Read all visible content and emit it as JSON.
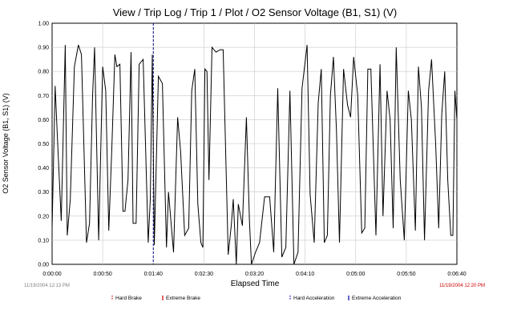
{
  "chart_data": {
    "type": "line",
    "title": "View / Trip Log / Trip 1 / Plot / O2 Sensor Voltage (B1, S1) (V)",
    "xlabel": "Elapsed Time",
    "ylabel": "O2 Sensor Voltage (B1, S1) (V)",
    "ylim": [
      0,
      1.0
    ],
    "xlim_seconds": [
      0,
      400
    ],
    "y_ticks": [
      "0.00",
      "0.10",
      "0.20",
      "0.30",
      "0.40",
      "0.50",
      "0.60",
      "0.70",
      "0.80",
      "0.90",
      "1.00"
    ],
    "x_ticks": [
      "0:00:00",
      "0:00:50",
      "0:01:40",
      "0:02:30",
      "0:03:20",
      "0:04:10",
      "0:05:00",
      "0:05:50",
      "0:06:40"
    ],
    "grid": true,
    "start_time": "11/19/2004 12:13 PM",
    "end_time": "11/19/2004 12:20 PM",
    "series": [
      {
        "x": [
          0,
          3,
          5,
          9,
          13,
          15,
          18,
          22,
          26,
          29,
          34,
          37,
          40,
          42,
          46,
          50,
          53,
          56,
          59,
          62,
          64,
          67,
          70,
          72,
          75,
          78,
          80,
          83,
          86,
          90,
          95,
          97,
          99,
          101,
          105,
          109,
          113,
          115,
          120,
          124,
          127,
          131,
          135,
          138,
          141,
          144,
          147,
          149,
          151,
          153,
          155,
          158,
          162,
          166,
          169,
          172,
          174,
          177,
          179,
          182,
          184,
          188,
          192,
          195,
          197,
          201,
          205,
          210,
          215,
          219,
          223,
          227,
          231,
          235,
          239,
          243,
          247,
          252,
          255,
          259,
          263,
          266,
          269,
          272,
          275,
          278,
          281,
          284,
          288,
          292,
          295,
          298,
          302,
          306,
          309,
          312,
          315,
          320,
          324,
          327,
          331,
          334,
          337,
          340,
          344,
          348,
          352,
          355,
          359,
          362,
          365,
          368,
          372,
          375,
          379,
          382,
          385,
          388,
          391,
          394,
          396,
          398,
          400
        ],
        "y": [
          0.15,
          0.74,
          0.55,
          0.18,
          0.91,
          0.12,
          0.27,
          0.82,
          0.91,
          0.87,
          0.09,
          0.17,
          0.7,
          0.9,
          0.1,
          0.82,
          0.72,
          0.14,
          0.48,
          0.87,
          0.82,
          0.83,
          0.22,
          0.22,
          0.35,
          0.88,
          0.17,
          0.17,
          0.83,
          0.85,
          0.09,
          0.27,
          0.87,
          0.08,
          0.78,
          0.75,
          0.07,
          0.3,
          0.05,
          0.61,
          0.47,
          0.12,
          0.15,
          0.72,
          0.81,
          0.25,
          0.09,
          0.07,
          0.81,
          0.8,
          0.35,
          0.9,
          0.88,
          0.89,
          0.89,
          0.39,
          0.04,
          0.16,
          0.27,
          0.0,
          0.25,
          0.16,
          0.61,
          0.18,
          0.0,
          0.05,
          0.09,
          0.28,
          0.28,
          0.05,
          0.73,
          0.03,
          0.07,
          0.72,
          0.0,
          0.05,
          0.73,
          0.91,
          0.29,
          0.09,
          0.67,
          0.81,
          0.09,
          0.12,
          0.7,
          0.86,
          0.55,
          0.09,
          0.81,
          0.66,
          0.61,
          0.86,
          0.7,
          0.13,
          0.15,
          0.81,
          0.81,
          0.12,
          0.83,
          0.2,
          0.72,
          0.6,
          0.15,
          0.9,
          0.35,
          0.1,
          0.72,
          0.6,
          0.14,
          0.82,
          0.65,
          0.1,
          0.72,
          0.85,
          0.5,
          0.15,
          0.62,
          0.8,
          0.35,
          0.12,
          0.12,
          0.72,
          0.6
        ]
      }
    ],
    "markers_seconds": [
      100
    ]
  },
  "legend": [
    {
      "label": "Hard Brake",
      "color": "#cc0000",
      "style": "dashed"
    },
    {
      "label": "Extreme Brake",
      "color": "#cc0000",
      "style": "solid"
    },
    {
      "label": "Hard Acceleration",
      "color": "#0000aa",
      "style": "dashed"
    },
    {
      "label": "Extreme Acceleration",
      "color": "#0000aa",
      "style": "solid"
    }
  ],
  "colors": {
    "series": "#000000",
    "grid": "#c8c8c8",
    "start_time": "#808080",
    "end_time": "#cc0000",
    "marker": "#00008b"
  }
}
